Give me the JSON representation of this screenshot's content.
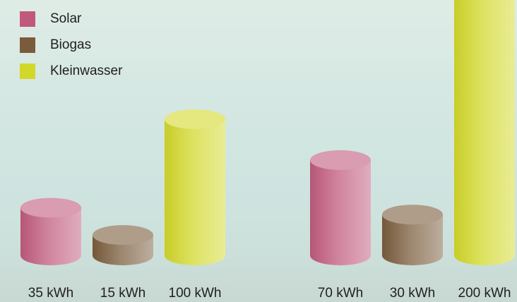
{
  "chart_data": {
    "type": "bar",
    "style": "3d-cylinder",
    "unit": "kWh",
    "groups": [
      {
        "values": [
          35,
          15,
          100
        ],
        "labels": [
          "35 kWh",
          "15 kWh",
          "100 kWh"
        ]
      },
      {
        "values": [
          70,
          30,
          200
        ],
        "labels": [
          "70 kWh",
          "30 kWh",
          "200 kWh"
        ]
      }
    ],
    "series": [
      {
        "name": "Solar",
        "color": "#c05a7c"
      },
      {
        "name": "Biogas",
        "color": "#7a5c3c"
      },
      {
        "name": "Kleinwasser",
        "color": "#d2d82a"
      }
    ],
    "legend_position": "top-left",
    "grid": false
  }
}
